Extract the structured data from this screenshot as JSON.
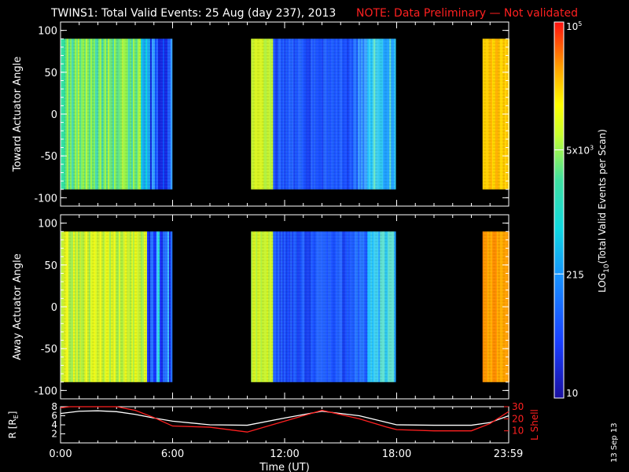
{
  "header": {
    "title": "TWINS1: Total Valid Events: 25 Aug (day 237), 2013",
    "note": "NOTE: Data Preliminary — Not validated",
    "note_color": "#ff2020"
  },
  "footer": {
    "side_date": "13 Sep 13"
  },
  "chart_data": [
    {
      "type": "heatmap",
      "id": "toward",
      "ylabel": "Toward Actuator Angle",
      "ylim": [
        -110,
        110
      ],
      "yticks": [
        100,
        50,
        0,
        -50,
        -100
      ],
      "xlim": [
        0,
        24
      ],
      "data_yrange": [
        -90,
        90
      ],
      "segments": [
        {
          "start_h": 0.0,
          "end_h": 5.9,
          "profile": "mix1"
        },
        {
          "start_h": 10.2,
          "end_h": 17.9,
          "profile": "low1"
        },
        {
          "start_h": 22.6,
          "end_h": 24.0,
          "profile": "high"
        }
      ]
    },
    {
      "type": "heatmap",
      "id": "away",
      "ylabel": "Away Actuator Angle",
      "ylim": [
        -110,
        110
      ],
      "yticks": [
        100,
        50,
        0,
        -50,
        -100
      ],
      "xlim": [
        0,
        24
      ],
      "data_yrange": [
        -90,
        90
      ],
      "segments": [
        {
          "start_h": 0.0,
          "end_h": 5.9,
          "profile": "mix2"
        },
        {
          "start_h": 10.2,
          "end_h": 17.9,
          "profile": "low2"
        },
        {
          "start_h": 22.6,
          "end_h": 24.0,
          "profile": "high2"
        }
      ]
    },
    {
      "type": "line",
      "id": "orbit",
      "xlabel": "Time (UT)",
      "xticks": [
        "0:00",
        "6:00",
        "12:00",
        "18:00",
        "23:59"
      ],
      "xtick_hours": [
        0,
        6,
        12,
        18,
        23.98
      ],
      "y_left_label": "R [R",
      "y_left_sub": "E",
      "y_left_label_end": "]",
      "y_left_ticks": [
        8,
        6,
        4,
        2
      ],
      "y_left_lim": [
        0,
        8
      ],
      "y_right_label": "L Shell",
      "y_right_ticks": [
        30,
        20,
        10
      ],
      "y_right_lim": [
        0,
        30
      ],
      "series": [
        {
          "axis": "left",
          "color": "#ffffff",
          "x": [
            0,
            1,
            2,
            3,
            4,
            5,
            6,
            8,
            10,
            12,
            14,
            16,
            17.5,
            18,
            20,
            22,
            23,
            24
          ],
          "y": [
            6.5,
            7.0,
            7.1,
            6.9,
            6.3,
            5.5,
            4.8,
            4.0,
            3.9,
            5.5,
            7.0,
            6.0,
            4.5,
            4.0,
            3.9,
            3.9,
            4.5,
            6.0
          ]
        },
        {
          "axis": "right",
          "color": "#ff2020",
          "x": [
            0,
            0.5,
            1,
            2,
            3,
            4,
            5,
            6,
            8,
            10,
            12,
            14,
            16,
            17.5,
            18,
            20,
            22,
            23,
            24
          ],
          "y": [
            29,
            31,
            31,
            31,
            31,
            27,
            21,
            14,
            13,
            9,
            18,
            27,
            20,
            13,
            11,
            10,
            10,
            16,
            26
          ]
        }
      ]
    }
  ],
  "colorbar": {
    "label_prefix": "LOG",
    "label_sub": "10",
    "label_rest": "(Total Valid  Events per Scan)",
    "ticks": [
      {
        "base": "10",
        "exp": "5",
        "frac": 1.0
      },
      {
        "base": "5x10",
        "exp": "3",
        "frac": 0.66
      },
      {
        "base": "215",
        "exp": "",
        "frac": 0.33
      },
      {
        "base": "10",
        "exp": "",
        "frac": 0.0
      }
    ]
  }
}
